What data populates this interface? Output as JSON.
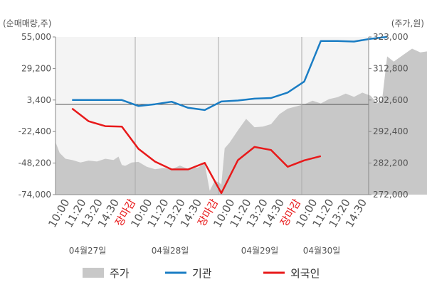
{
  "chart_data": {
    "type": "line",
    "y_left_unit_label": "(순매매량,주)",
    "y_right_unit_label": "(주가,원)",
    "y_left_ticks": [
      "55,000",
      "29,200",
      "3,400",
      "-22,400",
      "-48,200",
      "-74,000"
    ],
    "y_right_ticks": [
      "323,000",
      "312,800",
      "302,600",
      "292,400",
      "282,200",
      "272,000"
    ],
    "y_left_range": [
      -74000,
      55000
    ],
    "y_right_range": [
      272000,
      323000
    ],
    "x_ticks": [
      {
        "label": "10:00",
        "close": false
      },
      {
        "label": "11:20",
        "close": false
      },
      {
        "label": "13:20",
        "close": false
      },
      {
        "label": "14:30",
        "close": false
      },
      {
        "label": "장마감",
        "close": true
      },
      {
        "label": "10:00",
        "close": false
      },
      {
        "label": "11:20",
        "close": false
      },
      {
        "label": "13:20",
        "close": false
      },
      {
        "label": "14:30",
        "close": false
      },
      {
        "label": "장마감",
        "close": true
      },
      {
        "label": "10:00",
        "close": false
      },
      {
        "label": "11:20",
        "close": false
      },
      {
        "label": "13:20",
        "close": false
      },
      {
        "label": "14:30",
        "close": false
      },
      {
        "label": "장마감",
        "close": true
      },
      {
        "label": "10:00",
        "close": false
      },
      {
        "label": "11:20",
        "close": false
      },
      {
        "label": "13:20",
        "close": false
      },
      {
        "label": "14:30",
        "close": false
      }
    ],
    "dates": [
      "04월27일",
      "04월28일",
      "04월29일",
      "04월30일"
    ],
    "series": [
      {
        "name": "주가",
        "kind": "area",
        "axis": "right",
        "color": "#c8c8c8",
        "points": [
          [
            0,
            289000
          ],
          [
            0.25,
            285500
          ],
          [
            0.6,
            283600
          ],
          [
            1,
            283200
          ],
          [
            1.5,
            282400
          ],
          [
            2,
            283000
          ],
          [
            2.5,
            282700
          ],
          [
            3,
            283600
          ],
          [
            3.5,
            283200
          ],
          [
            3.8,
            284300
          ],
          [
            4,
            281600
          ],
          [
            4.2,
            281300
          ],
          [
            4.6,
            282400
          ],
          [
            5,
            282600
          ],
          [
            5.5,
            281000
          ],
          [
            6,
            280200
          ],
          [
            6.5,
            280600
          ],
          [
            7,
            280200
          ],
          [
            7.5,
            281400
          ],
          [
            8,
            280300
          ],
          [
            8.6,
            280800
          ],
          [
            9,
            282000
          ],
          [
            9.3,
            273200
          ],
          [
            9.6,
            276500
          ],
          [
            9.9,
            275800
          ],
          [
            10,
            275200
          ],
          [
            10.2,
            287000
          ],
          [
            10.5,
            288800
          ],
          [
            11,
            292800
          ],
          [
            11.5,
            296500
          ],
          [
            12,
            293800
          ],
          [
            12.5,
            294000
          ],
          [
            13,
            294800
          ],
          [
            13.5,
            298000
          ],
          [
            14,
            299800
          ],
          [
            14.5,
            300500
          ],
          [
            15,
            301200
          ],
          [
            15.5,
            302400
          ],
          [
            16,
            301500
          ],
          [
            16.5,
            302900
          ],
          [
            17,
            303500
          ],
          [
            17.5,
            304700
          ],
          [
            18,
            303600
          ],
          [
            18.5,
            305000
          ],
          [
            19,
            304000
          ],
          [
            19.4,
            301500
          ],
          [
            19.7,
            302800
          ],
          [
            20,
            316700
          ],
          [
            20.4,
            315000
          ],
          [
            21,
            317300
          ],
          [
            21.5,
            319200
          ],
          [
            22,
            318000
          ],
          [
            22.5,
            318400
          ],
          [
            23,
            319500
          ],
          [
            23.5,
            321500
          ],
          [
            24,
            318300
          ]
        ]
      },
      {
        "name": "기관",
        "kind": "line",
        "axis": "left",
        "color": "#1a7dc4",
        "points": [
          [
            1,
            3400
          ],
          [
            4,
            3400
          ],
          [
            5,
            -1500
          ],
          [
            6,
            0
          ],
          [
            7,
            2000
          ],
          [
            8,
            -3000
          ],
          [
            9,
            -4800
          ],
          [
            10,
            2200
          ],
          [
            11,
            3000
          ],
          [
            12,
            4500
          ],
          [
            13,
            5000
          ],
          [
            14,
            9500
          ],
          [
            15,
            18500
          ],
          [
            16,
            51700
          ],
          [
            17,
            51700
          ],
          [
            18,
            51200
          ],
          [
            19,
            53500
          ],
          [
            20,
            55000
          ]
        ]
      },
      {
        "name": "외국인",
        "kind": "line",
        "axis": "left",
        "color": "#e8191a",
        "points": [
          [
            1,
            -3600
          ],
          [
            2,
            -14000
          ],
          [
            3,
            -18000
          ],
          [
            4,
            -18400
          ],
          [
            5,
            -36500
          ],
          [
            6,
            -47000
          ],
          [
            7,
            -53400
          ],
          [
            8,
            -53400
          ],
          [
            9,
            -48000
          ],
          [
            10,
            -72800
          ],
          [
            11,
            -45800
          ],
          [
            12,
            -35000
          ],
          [
            13,
            -37500
          ],
          [
            14,
            -51200
          ],
          [
            15,
            -46000
          ],
          [
            16,
            -42500
          ]
        ]
      }
    ],
    "legend": [
      "주가",
      "기관",
      "외국인"
    ],
    "legend_position": "bottom",
    "grid": false
  }
}
